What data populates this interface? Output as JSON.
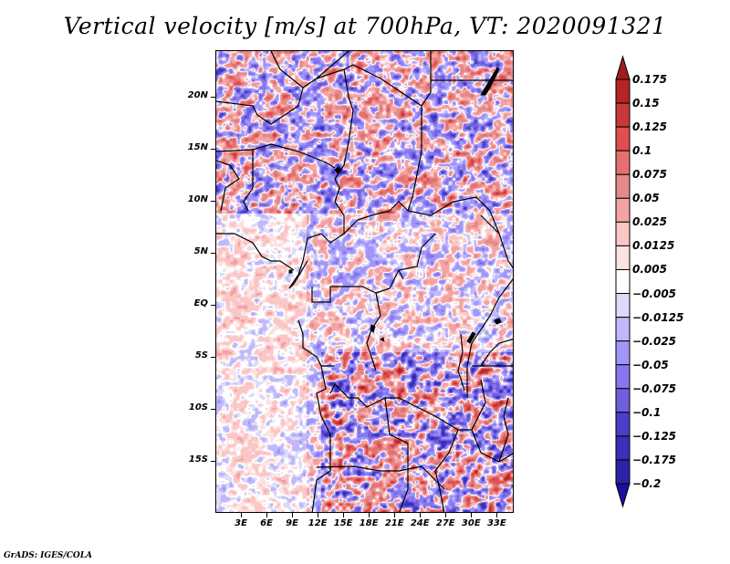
{
  "chart_data": {
    "type": "heatmap",
    "title": "Vertical velocity [m/s] at 700hPa, VT: 2020091321",
    "variable": "Vertical velocity",
    "units": "m/s",
    "level": "700hPa",
    "valid_time": "2020091321",
    "xlabel": "",
    "ylabel": "",
    "x_ticks": [
      "3E",
      "6E",
      "9E",
      "12E",
      "15E",
      "18E",
      "21E",
      "24E",
      "27E",
      "30E",
      "33E"
    ],
    "x_tick_values": [
      3,
      6,
      9,
      12,
      15,
      18,
      21,
      24,
      27,
      30,
      33
    ],
    "y_ticks": [
      "20N",
      "15N",
      "10N",
      "5N",
      "EQ",
      "5S",
      "10S",
      "15S"
    ],
    "y_tick_values": [
      20,
      15,
      10,
      5,
      0,
      -5,
      -10,
      -15
    ],
    "xlim": [
      0,
      35
    ],
    "ylim": [
      -20,
      24.5
    ],
    "colorbar": {
      "position": "right",
      "levels": [
        0.175,
        0.15,
        0.125,
        0.1,
        0.075,
        0.05,
        0.025,
        0.0125,
        0.005,
        -0.005,
        -0.0125,
        -0.025,
        -0.05,
        -0.075,
        -0.1,
        -0.125,
        -0.175,
        -0.2
      ],
      "labels": [
        "0.175",
        "0.15",
        "0.125",
        "0.1",
        "0.075",
        "0.05",
        "0.025",
        "0.0125",
        "0.005",
        "−0.005",
        "−0.0125",
        "−0.025",
        "−0.05",
        "−0.075",
        "−0.1",
        "−0.125",
        "−0.175",
        "−0.2"
      ],
      "colors": [
        "#a01d1d",
        "#b42525",
        "#c83a3a",
        "#e04f4f",
        "#e67070",
        "#e48a8a",
        "#f4a3a3",
        "#fbc6c6",
        "#fde2e2",
        "#ffffff",
        "#dcdcfa",
        "#c0b8fa",
        "#a096fa",
        "#8876ee",
        "#6f5fdc",
        "#4a3fc8",
        "#3b2eb8",
        "#2b22a8",
        "#1d0ea0"
      ],
      "extend": "both"
    },
    "grid": false
  },
  "footer": {
    "credit": "GrADS: IGES/COLA"
  }
}
